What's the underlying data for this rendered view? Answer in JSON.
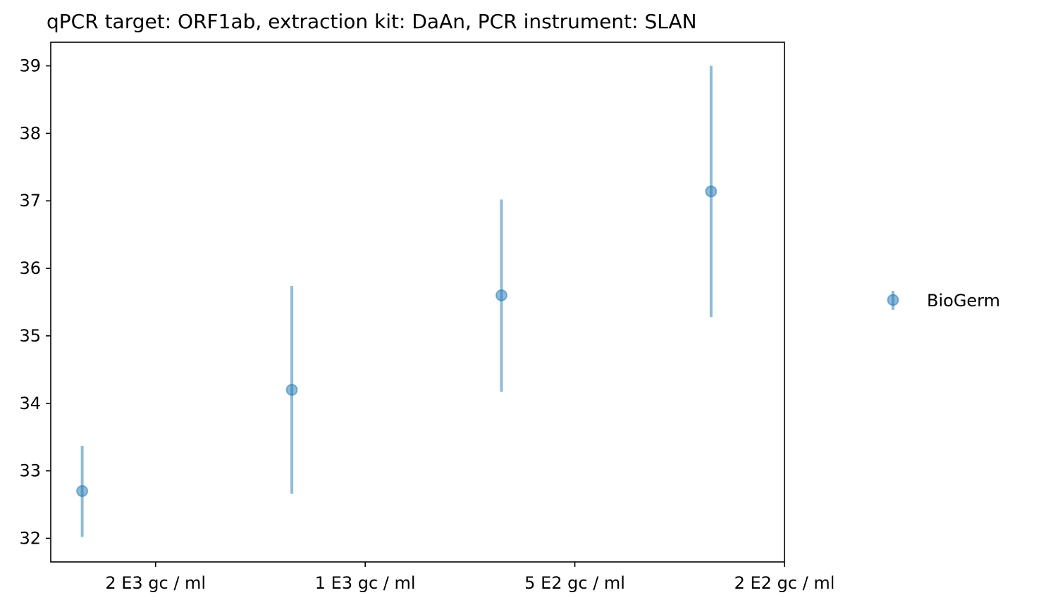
{
  "chart_data": {
    "type": "scatter",
    "title": "qPCR target: ORF1ab, extraction kit: DaAn, PCR instrument: SLAN",
    "xlabel": "",
    "ylabel": "",
    "categories": [
      "2 E3 gc / ml",
      "1 E3 gc / ml",
      "5 E2 gc / ml",
      "2 E2 gc / ml"
    ],
    "yticks": [
      32,
      33,
      34,
      35,
      36,
      37,
      38,
      39
    ],
    "ylim": [
      31.65,
      39.35
    ],
    "grid": false,
    "legend_position": "right",
    "series": [
      {
        "name": "BioGerm",
        "color": "#1f77b4",
        "points": [
          {
            "y": 32.7,
            "err_low": 32.02,
            "err_high": 33.37
          },
          {
            "y": 34.2,
            "err_low": 32.66,
            "err_high": 35.74
          },
          {
            "y": 35.6,
            "err_low": 34.17,
            "err_high": 37.02
          },
          {
            "y": 37.14,
            "err_low": 35.28,
            "err_high": 39.0
          }
        ]
      }
    ]
  }
}
